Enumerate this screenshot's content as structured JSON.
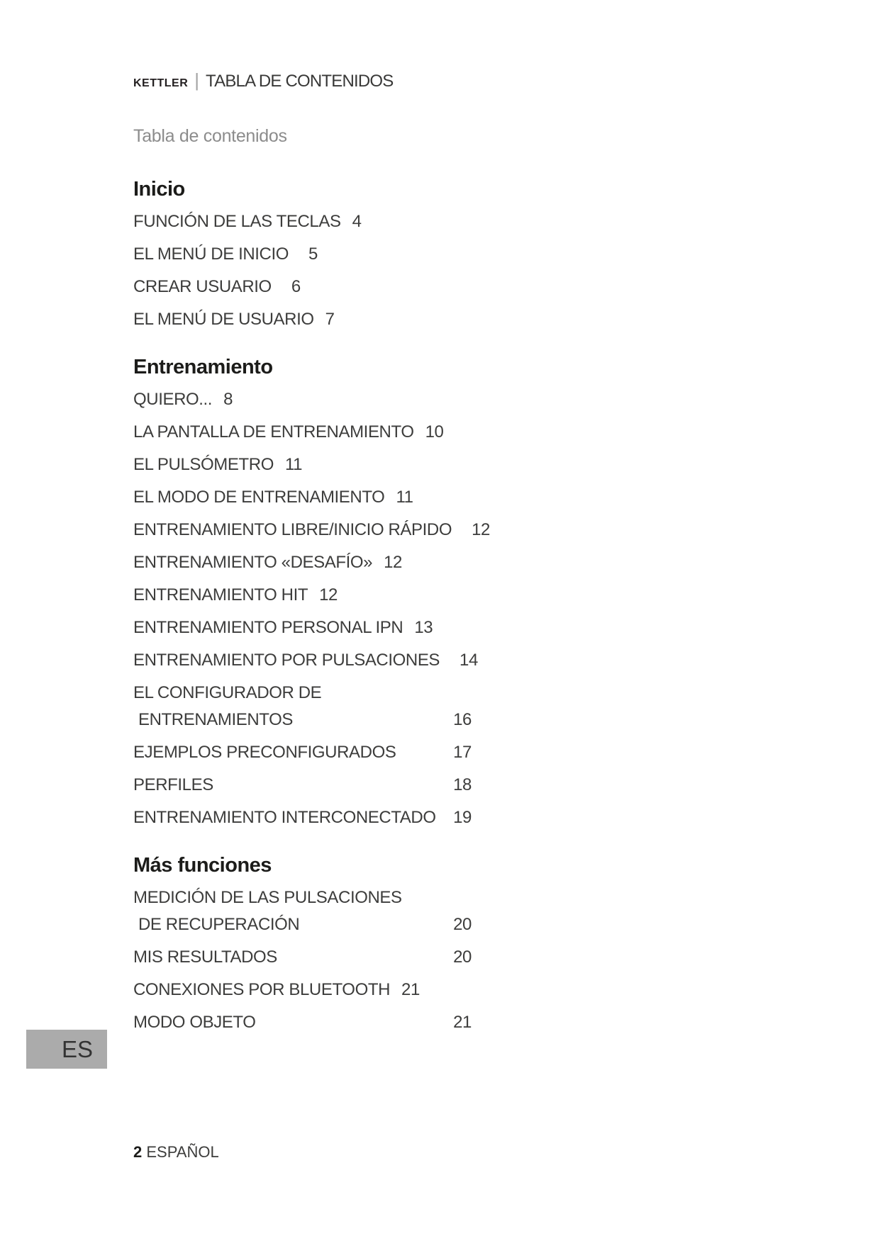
{
  "header": {
    "brand": "KETTLER",
    "separator": "|",
    "title": "TABLA DE CONTENIDOS"
  },
  "subtitle": "Tabla de contenidos",
  "sections": [
    {
      "title": "Inicio",
      "entries": [
        {
          "label": "FUNCIÓN DE LAS TECLAS",
          "page": "4"
        },
        {
          "label": "EL MENÚ DE INICIO",
          "page": "5"
        },
        {
          "label": "CREAR USUARIO",
          "page": "6"
        },
        {
          "label": "EL MENÚ DE USUARIO",
          "page": "7"
        }
      ]
    },
    {
      "title": "Entrenamiento",
      "entries": [
        {
          "label": "QUIERO...",
          "page": "8"
        },
        {
          "label": "LA PANTALLA DE ENTRENAMIENTO",
          "page": "10"
        },
        {
          "label": "EL PULSÓMETRO",
          "page": "11"
        },
        {
          "label": "EL MODO DE ENTRENAMIENTO",
          "page": "11"
        },
        {
          "label": "ENTRENAMIENTO LIBRE/INICIO RÁPIDO",
          "page": "12"
        },
        {
          "label": "ENTRENAMIENTO «DESAFÍO»",
          "page": "12"
        },
        {
          "label": "ENTRENAMIENTO HIT",
          "page": "12"
        },
        {
          "label": "ENTRENAMIENTO PERSONAL IPN",
          "page": "13"
        },
        {
          "label": "ENTRENAMIENTO POR PULSACIONES",
          "page": "14"
        },
        {
          "label": "EL CONFIGURADOR DE",
          "label2": "ENTRENAMIENTOS",
          "page": "16"
        },
        {
          "label": "EJEMPLOS PRECONFIGURADOS",
          "page": "17"
        },
        {
          "label": "PERFILES",
          "page": "18"
        },
        {
          "label": "ENTRENAMIENTO INTERCONECTADO",
          "page": "19"
        }
      ]
    },
    {
      "title": "Más funciones",
      "entries": [
        {
          "label": "MEDICIÓN DE LAS PULSACIONES",
          "label2": "DE RECUPERACIÓN",
          "page": "20"
        },
        {
          "label": "MIS RESULTADOS",
          "page": "20"
        },
        {
          "label": "CONEXIONES POR BLUETOOTH",
          "page": "21"
        },
        {
          "label": "MODO OBJETO",
          "page": "21"
        }
      ]
    }
  ],
  "language_tab": "ES",
  "footer": {
    "page_number": "2",
    "language": "ESPAÑOL"
  }
}
